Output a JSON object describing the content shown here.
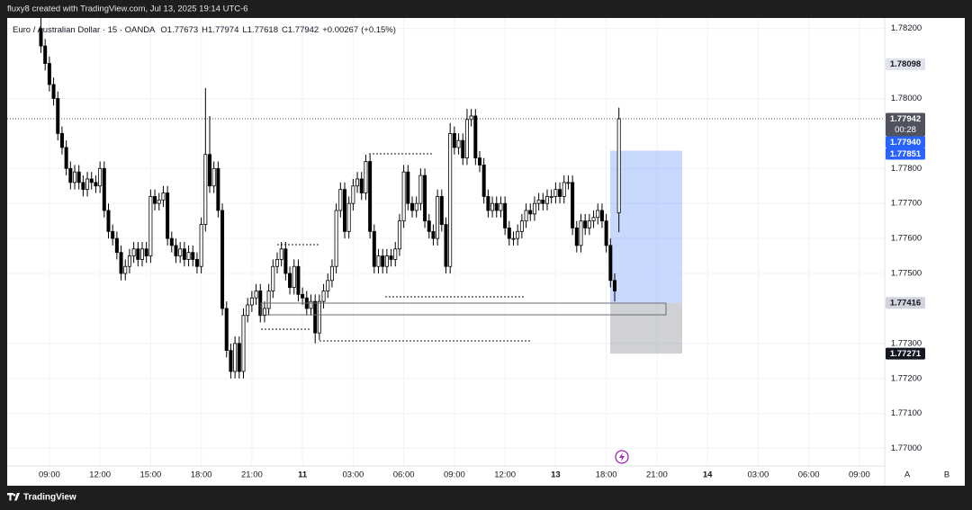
{
  "header": {
    "text": "fluxy8 created with TradingView.com, Jul 13, 2025 19:14 UTC-6"
  },
  "footer": {
    "brand": "TradingView"
  },
  "scale_buttons": [
    "A",
    "B"
  ],
  "chart_data": {
    "type": "candlestick",
    "title": "Euro / Australian Dollar · 15 · OANDA",
    "legend": [
      {
        "label": "O",
        "value": 1.77673
      },
      {
        "label": "H",
        "value": 1.77974
      },
      {
        "label": "L",
        "value": 1.77618
      },
      {
        "label": "C",
        "value": 1.77942
      }
    ],
    "change": {
      "value": 0.00267,
      "label": "+0.00267"
    },
    "change_pct": {
      "value": 0.15,
      "label": "(+0.15%)"
    },
    "open": [
      1.782,
      1.7815,
      1.781,
      1.7804,
      1.78,
      1.779,
      1.7786,
      1.778,
      1.7776,
      1.7779,
      1.7776,
      1.7774,
      1.7777,
      1.7776,
      1.7775,
      1.778,
      1.7768,
      1.7762,
      1.776,
      1.7756,
      1.775,
      1.7752,
      1.7755,
      1.7757,
      1.7754,
      1.7757,
      1.7755,
      1.7772,
      1.777,
      1.7771,
      1.7773,
      1.776,
      1.7758,
      1.7755,
      1.7757,
      1.7754,
      1.7756,
      1.7754,
      1.7752,
      1.7764,
      1.7784,
      1.7775,
      1.778,
      1.7768,
      1.774,
      1.7728,
      1.7722,
      1.773,
      1.7722,
      1.7738,
      1.7741,
      1.7743,
      1.7745,
      1.7738,
      1.774,
      1.7745,
      1.7752,
      1.7754,
      1.7757,
      1.775,
      1.7746,
      1.7752,
      1.7744,
      1.7743,
      1.774,
      1.7742,
      1.7733,
      1.7742,
      1.7745,
      1.7748,
      1.7752,
      1.7768,
      1.7774,
      1.7762,
      1.777,
      1.7775,
      1.7777,
      1.7773,
      1.7782,
      1.7762,
      1.7752,
      1.7755,
      1.7752,
      1.7755,
      1.7754,
      1.7757,
      1.7765,
      1.7779,
      1.777,
      1.7768,
      1.777,
      1.7778,
      1.7765,
      1.7762,
      1.776,
      1.7772,
      1.7764,
      1.7752,
      1.779,
      1.7786,
      1.7788,
      1.7783,
      1.7794,
      1.7795,
      1.7783,
      1.7781,
      1.7772,
      1.7768,
      1.777,
      1.7768,
      1.777,
      1.7763,
      1.776,
      1.776,
      1.7762,
      1.7765,
      1.7768,
      1.7767,
      1.777,
      1.7771,
      1.777,
      1.7772,
      1.7772,
      1.7774,
      1.7772,
      1.7776,
      1.7776,
      1.7763,
      1.7758,
      1.7765,
      1.7763,
      1.7765,
      1.7766,
      1.7768,
      1.7765,
      1.7758,
      1.7748,
      1.77673
    ],
    "high": [
      1.7823,
      1.7817,
      1.7812,
      1.7806,
      1.7802,
      1.7792,
      1.7788,
      1.7782,
      1.7781,
      1.7781,
      1.7778,
      1.7779,
      1.7779,
      1.7778,
      1.7782,
      1.7782,
      1.777,
      1.7764,
      1.7762,
      1.7758,
      1.7754,
      1.7757,
      1.7759,
      1.7759,
      1.7759,
      1.7759,
      1.7774,
      1.7774,
      1.7773,
      1.7775,
      1.7775,
      1.7762,
      1.776,
      1.7759,
      1.7759,
      1.7758,
      1.7758,
      1.7756,
      1.7766,
      1.7803,
      1.7795,
      1.7782,
      1.7782,
      1.777,
      1.7742,
      1.773,
      1.7732,
      1.7732,
      1.774,
      1.7743,
      1.7745,
      1.7747,
      1.7747,
      1.7742,
      1.7747,
      1.7754,
      1.7756,
      1.7759,
      1.7759,
      1.7752,
      1.7754,
      1.7754,
      1.7746,
      1.7745,
      1.7744,
      1.7744,
      1.7744,
      1.7747,
      1.775,
      1.7754,
      1.777,
      1.7776,
      1.7776,
      1.7772,
      1.7777,
      1.7779,
      1.7779,
      1.7784,
      1.7784,
      1.7764,
      1.7757,
      1.7757,
      1.7757,
      1.7757,
      1.7759,
      1.7767,
      1.7781,
      1.7781,
      1.7772,
      1.7772,
      1.778,
      1.778,
      1.7767,
      1.7764,
      1.7774,
      1.7774,
      1.7766,
      1.7793,
      1.7792,
      1.779,
      1.779,
      1.7797,
      1.7797,
      1.7797,
      1.7785,
      1.7783,
      1.7774,
      1.7772,
      1.7772,
      1.7772,
      1.7772,
      1.7765,
      1.7762,
      1.7764,
      1.7767,
      1.777,
      1.777,
      1.7772,
      1.7773,
      1.7773,
      1.7774,
      1.7774,
      1.7776,
      1.7776,
      1.7778,
      1.7778,
      1.7778,
      1.7765,
      1.7767,
      1.7767,
      1.7767,
      1.7768,
      1.777,
      1.777,
      1.7767,
      1.776,
      1.775,
      1.77974
    ],
    "low": [
      1.7813,
      1.7808,
      1.7802,
      1.7798,
      1.7788,
      1.7784,
      1.7778,
      1.7774,
      1.7774,
      1.7774,
      1.7772,
      1.7772,
      1.7774,
      1.7773,
      1.7773,
      1.7766,
      1.776,
      1.7758,
      1.7754,
      1.7748,
      1.7748,
      1.775,
      1.7753,
      1.7752,
      1.7752,
      1.7753,
      1.7753,
      1.7768,
      1.7768,
      1.7769,
      1.7758,
      1.7756,
      1.7753,
      1.7753,
      1.7752,
      1.7752,
      1.7752,
      1.775,
      1.775,
      1.7762,
      1.7773,
      1.7773,
      1.7766,
      1.7738,
      1.7726,
      1.772,
      1.772,
      1.772,
      1.772,
      1.7736,
      1.7739,
      1.7741,
      1.7736,
      1.7736,
      1.7738,
      1.7743,
      1.775,
      1.7752,
      1.7748,
      1.7744,
      1.7744,
      1.7742,
      1.7741,
      1.7738,
      1.7738,
      1.773,
      1.7731,
      1.774,
      1.7743,
      1.7746,
      1.775,
      1.7766,
      1.776,
      1.776,
      1.7768,
      1.7773,
      1.7771,
      1.7771,
      1.776,
      1.775,
      1.775,
      1.775,
      1.775,
      1.7752,
      1.7752,
      1.7755,
      1.7763,
      1.7768,
      1.7766,
      1.7766,
      1.7768,
      1.7763,
      1.776,
      1.7758,
      1.7758,
      1.7762,
      1.775,
      1.775,
      1.7784,
      1.7784,
      1.7781,
      1.7781,
      1.7792,
      1.7781,
      1.7779,
      1.777,
      1.7766,
      1.7766,
      1.7766,
      1.7766,
      1.7761,
      1.7758,
      1.7758,
      1.7758,
      1.776,
      1.7763,
      1.7765,
      1.7765,
      1.7768,
      1.7768,
      1.7768,
      1.777,
      1.777,
      1.777,
      1.777,
      1.7774,
      1.7761,
      1.7756,
      1.7756,
      1.7761,
      1.7761,
      1.7763,
      1.7764,
      1.7763,
      1.7756,
      1.7746,
      1.7742,
      1.77618
    ],
    "close": [
      1.7815,
      1.781,
      1.7804,
      1.78,
      1.779,
      1.7786,
      1.778,
      1.7776,
      1.7779,
      1.7776,
      1.7774,
      1.7777,
      1.7776,
      1.7775,
      1.778,
      1.7768,
      1.7762,
      1.776,
      1.7756,
      1.775,
      1.7752,
      1.7755,
      1.7757,
      1.7754,
      1.7757,
      1.7755,
      1.7772,
      1.777,
      1.7771,
      1.7773,
      1.776,
      1.7758,
      1.7755,
      1.7757,
      1.7754,
      1.7756,
      1.7754,
      1.7752,
      1.7764,
      1.7784,
      1.7775,
      1.778,
      1.7768,
      1.774,
      1.7728,
      1.7722,
      1.773,
      1.7722,
      1.7738,
      1.7741,
      1.7743,
      1.7745,
      1.7738,
      1.774,
      1.7745,
      1.7752,
      1.7754,
      1.7757,
      1.775,
      1.7746,
      1.7752,
      1.7744,
      1.7743,
      1.774,
      1.7742,
      1.7733,
      1.7742,
      1.7745,
      1.7748,
      1.7752,
      1.7768,
      1.7774,
      1.7762,
      1.777,
      1.7775,
      1.7777,
      1.7773,
      1.7782,
      1.7762,
      1.7752,
      1.7755,
      1.7752,
      1.7755,
      1.7754,
      1.7757,
      1.7765,
      1.7779,
      1.777,
      1.7768,
      1.777,
      1.7778,
      1.7765,
      1.7762,
      1.776,
      1.7772,
      1.7764,
      1.7752,
      1.779,
      1.7786,
      1.7788,
      1.7783,
      1.7794,
      1.7795,
      1.7783,
      1.7781,
      1.7772,
      1.7768,
      1.777,
      1.7768,
      1.777,
      1.7763,
      1.776,
      1.776,
      1.7762,
      1.7765,
      1.7768,
      1.7767,
      1.777,
      1.7771,
      1.777,
      1.7772,
      1.7772,
      1.7774,
      1.7772,
      1.7776,
      1.7776,
      1.7763,
      1.7758,
      1.7765,
      1.7763,
      1.7765,
      1.7766,
      1.7768,
      1.7765,
      1.7758,
      1.7748,
      1.7745,
      1.77942
    ],
    "up_color": "#ffffff",
    "down_color": "#000000",
    "wick_color": "#000000",
    "xlim": [
      -8,
      200
    ],
    "xticks": [
      {
        "value": 2,
        "label": "09:00"
      },
      {
        "value": 14,
        "label": "12:00"
      },
      {
        "value": 26,
        "label": "15:00"
      },
      {
        "value": 38,
        "label": "18:00"
      },
      {
        "value": 50,
        "label": "21:00"
      },
      {
        "value": 62,
        "label": "11"
      },
      {
        "value": 74,
        "label": "03:00"
      },
      {
        "value": 86,
        "label": "06:00"
      },
      {
        "value": 98,
        "label": "09:00"
      },
      {
        "value": 110,
        "label": "12:00"
      },
      {
        "value": 122,
        "label": "13"
      },
      {
        "value": 134,
        "label": "18:00"
      },
      {
        "value": 146,
        "label": "21:00"
      },
      {
        "value": 158,
        "label": "14"
      },
      {
        "value": 170,
        "label": "03:00"
      },
      {
        "value": 182,
        "label": "06:00"
      },
      {
        "value": 194,
        "label": "09:00"
      }
    ],
    "ylim": [
      1.7695,
      1.7823
    ],
    "yticks": [
      {
        "value": 1.782,
        "label": "1.78200"
      },
      {
        "value": 1.78,
        "label": "1.78000"
      },
      {
        "value": 1.778,
        "label": "1.77800"
      },
      {
        "value": 1.777,
        "label": "1.77700"
      },
      {
        "value": 1.776,
        "label": "1.77600"
      },
      {
        "value": 1.775,
        "label": "1.77500"
      },
      {
        "value": 1.773,
        "label": "1.77300"
      },
      {
        "value": 1.772,
        "label": "1.77200"
      },
      {
        "value": 1.771,
        "label": "1.77100"
      },
      {
        "value": 1.77,
        "label": "1.77000"
      }
    ],
    "grid": true,
    "price_labels": [
      {
        "value": 1.78098,
        "color": "#e0e3eb",
        "text_color": "#131722"
      },
      {
        "value": 1.77942,
        "color": "#50535e",
        "text_color": "#ffffff",
        "countdown": "00:28"
      },
      {
        "value": 1.7794,
        "label": "1.77940",
        "color": "#2962ff",
        "text_color": "#ffffff"
      },
      {
        "value": 1.77851,
        "color": "#2962ff",
        "text_color": "#ffffff"
      },
      {
        "value": 1.77416,
        "color": "#d1d4dc",
        "text_color": "#131722"
      },
      {
        "value": 1.77271,
        "color": "#131722",
        "text_color": "#ffffff"
      }
    ]
  }
}
